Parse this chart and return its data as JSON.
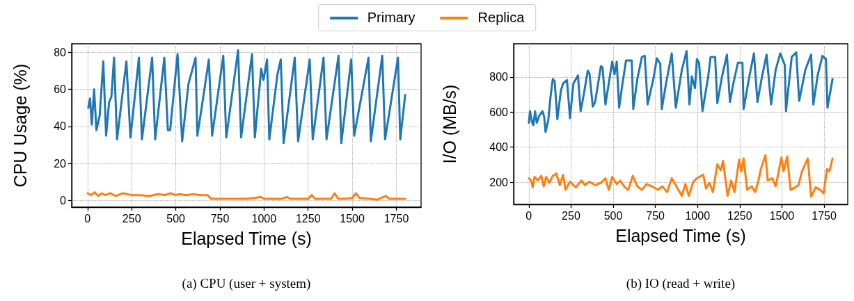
{
  "chart_data": [
    {
      "type": "line",
      "xlabel": "Elapsed Time (s)",
      "ylabel": "CPU Usage (%)",
      "annotations": [
        "(a) CPU (user + system)"
      ],
      "xlim": [
        -90,
        1890
      ],
      "xticks": [
        0,
        250,
        500,
        750,
        1000,
        1250,
        1500,
        1750
      ],
      "ylim": [
        -3.5,
        84.5
      ],
      "yticks": [
        0,
        20,
        40,
        60,
        80
      ],
      "grid": true,
      "legend": "top",
      "line_style": "solid",
      "marker": "none",
      "series": [
        {
          "name": "Primary",
          "color": "#1f77b4",
          "x": [
            4,
            14,
            24,
            37,
            50,
            69,
            89,
            105,
            122,
            135,
            150,
            167,
            220,
            243,
            291,
            308,
            366,
            383,
            435,
            455,
            468,
            510,
            536,
            572,
            612,
            622,
            648,
            687,
            706,
            769,
            786,
            853,
            870,
            932,
            948,
            984,
            997,
            1017,
            1030,
            1076,
            1095,
            1111,
            1174,
            1193,
            1259,
            1276,
            1337,
            1354,
            1422,
            1438,
            1494,
            1511,
            1592,
            1605,
            1670,
            1686,
            1759,
            1772,
            1800
          ],
          "values": [
            50,
            55,
            41,
            60,
            38,
            46,
            75,
            35,
            53,
            56,
            77,
            33,
            75,
            34,
            77,
            33,
            77,
            33,
            77,
            38,
            38,
            79,
            32,
            63,
            77,
            35,
            51,
            76,
            35,
            78,
            34,
            81,
            34,
            79,
            34,
            71,
            65,
            76,
            33,
            68,
            76,
            31,
            77,
            32,
            76,
            33,
            77,
            33,
            78,
            31,
            76,
            35,
            77,
            32,
            78,
            33,
            77,
            33,
            57
          ]
        },
        {
          "name": "Replica",
          "color": "#ff7f0e",
          "x": [
            0,
            20,
            40,
            60,
            80,
            100,
            130,
            160,
            200,
            250,
            300,
            350,
            400,
            440,
            470,
            500,
            520,
            560,
            600,
            640,
            680,
            700,
            750,
            800,
            850,
            900,
            950,
            980,
            1000,
            1050,
            1100,
            1130,
            1150,
            1200,
            1250,
            1270,
            1290,
            1340,
            1380,
            1400,
            1420,
            1460,
            1500,
            1520,
            1540,
            1600,
            1640,
            1690,
            1710,
            1760,
            1800
          ],
          "values": [
            4,
            3,
            4.5,
            2.5,
            4,
            3,
            4,
            2.5,
            4,
            3,
            3,
            2.5,
            3.5,
            3,
            4,
            3,
            3.5,
            3,
            3.5,
            3,
            3,
            1,
            1,
            1,
            1,
            1,
            1.5,
            2,
            1,
            1,
            1,
            2,
            1,
            1,
            1,
            3,
            1,
            1,
            1,
            4,
            1,
            1,
            1.5,
            4,
            1.5,
            1,
            0.5,
            2.5,
            1,
            1,
            1
          ]
        }
      ]
    },
    {
      "type": "line",
      "xlabel": "Elapsed Time (s)",
      "ylabel": "I/O (MB/s)",
      "annotations": [
        "(b) IO (read + write)"
      ],
      "xlim": [
        -90,
        1890
      ],
      "xticks": [
        0,
        250,
        500,
        750,
        1000,
        1250,
        1500,
        1750
      ],
      "ylim": [
        73,
        990
      ],
      "yticks": [
        200,
        400,
        600,
        800
      ],
      "grid": true,
      "line_style": "solid",
      "marker": "none",
      "series": [
        {
          "color": "#1f77b4",
          "x": [
            0,
            7,
            18,
            27,
            37,
            47,
            61,
            81,
            91,
            99,
            115,
            129,
            142,
            153,
            169,
            190,
            203,
            226,
            244,
            264,
            291,
            307,
            325,
            349,
            359,
            379,
            393,
            427,
            437,
            454,
            467,
            494,
            508,
            521,
            535,
            555,
            576,
            610,
            619,
            643,
            670,
            687,
            704,
            738,
            759,
            779,
            788,
            813,
            847,
            871,
            907,
            935,
            952,
            966,
            985,
            996,
            1009,
            1029,
            1063,
            1077,
            1104,
            1117,
            1145,
            1174,
            1192,
            1212,
            1239,
            1266,
            1273,
            1307,
            1334,
            1355,
            1382,
            1409,
            1436,
            1463,
            1490,
            1517,
            1524,
            1558,
            1585,
            1602,
            1639,
            1673,
            1686,
            1713,
            1740,
            1761,
            1770,
            1800
          ],
          "values": [
            539,
            605,
            545,
            526,
            605,
            539,
            578,
            605,
            572,
            486,
            552,
            691,
            789,
            776,
            559,
            723,
            763,
            783,
            565,
            763,
            809,
            605,
            697,
            836,
            822,
            631,
            658,
            862,
            855,
            644,
            723,
            888,
            816,
            888,
            625,
            763,
            895,
            895,
            618,
            789,
            915,
            921,
            644,
            789,
            908,
            875,
            618,
            763,
            935,
            625,
            842,
            948,
            644,
            803,
            737,
            902,
            882,
            605,
            803,
            915,
            915,
            651,
            803,
            928,
            658,
            763,
            882,
            882,
            618,
            803,
            935,
            658,
            803,
            928,
            644,
            842,
            935,
            869,
            605,
            915,
            941,
            664,
            842,
            928,
            644,
            816,
            921,
            902,
            625,
            789
          ]
        },
        {
          "color": "#ff7f0e",
          "x": [
            0,
            14,
            23,
            34,
            54,
            74,
            88,
            102,
            122,
            142,
            163,
            183,
            203,
            217,
            244,
            278,
            312,
            332,
            359,
            393,
            427,
            454,
            474,
            494,
            521,
            542,
            569,
            589,
            616,
            643,
            670,
            698,
            731,
            765,
            792,
            819,
            847,
            874,
            907,
            928,
            948,
            975,
            996,
            1023,
            1034,
            1050,
            1070,
            1091,
            1117,
            1138,
            1151,
            1178,
            1199,
            1219,
            1246,
            1260,
            1273,
            1294,
            1321,
            1341,
            1361,
            1375,
            1402,
            1416,
            1443,
            1463,
            1497,
            1510,
            1531,
            1551,
            1578,
            1598,
            1619,
            1653,
            1673,
            1700,
            1727,
            1747,
            1767,
            1781,
            1800
          ],
          "values": [
            222,
            209,
            170,
            230,
            209,
            236,
            176,
            230,
            196,
            236,
            249,
            183,
            242,
            156,
            203,
            170,
            209,
            183,
            203,
            183,
            196,
            222,
            156,
            230,
            189,
            209,
            170,
            156,
            236,
            176,
            156,
            189,
            176,
            156,
            176,
            143,
            222,
            176,
            122,
            189,
            122,
            203,
            222,
            236,
            242,
            163,
            196,
            143,
            301,
            268,
            321,
            122,
            209,
            143,
            328,
            262,
            335,
            156,
            176,
            143,
            209,
            275,
            354,
            209,
            222,
            176,
            341,
            262,
            347,
            156,
            170,
            183,
            262,
            335,
            117,
            170,
            156,
            137,
            275,
            262,
            335
          ]
        }
      ]
    }
  ]
}
